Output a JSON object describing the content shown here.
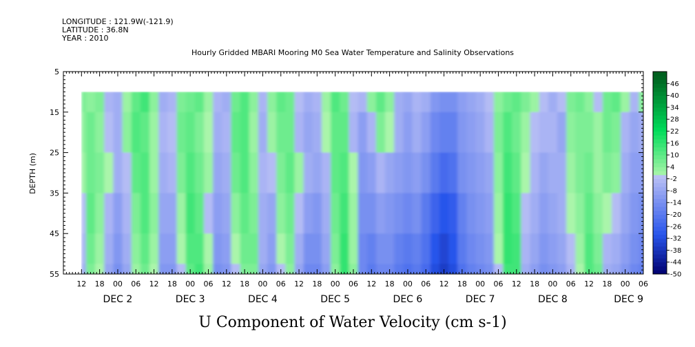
{
  "header": {
    "longitude": "LONGITUDE : 121.9W(-121.9)",
    "latitude": "LATITUDE : 36.8N",
    "year": "YEAR : 2010",
    "title": "Hourly Gridded MBARI Mooring M0 Sea Water Temperature and Salinity Observations"
  },
  "chart_data": {
    "type": "heatmap",
    "title": "Hourly Gridded MBARI Mooring M0 Sea Water Temperature and Salinity Observations",
    "xlabel": "",
    "ylabel": "DEPTH (m)",
    "variable_label": "U Component of Water Velocity (cm s-1)",
    "y_range_m": [
      5,
      55
    ],
    "y_inverted": true,
    "y_ticks": [
      "5",
      "15",
      "25",
      "35",
      "45",
      "55"
    ],
    "data_depth_range_m": [
      10,
      55
    ],
    "x_range_hours_from_dec1_00": [
      6,
      198
    ],
    "x_hour_ticks": [
      "12",
      "18",
      "00",
      "06",
      "12",
      "18",
      "00",
      "06",
      "12",
      "18",
      "00",
      "06",
      "12",
      "18",
      "00",
      "06",
      "12",
      "18",
      "00",
      "06",
      "12",
      "18",
      "00",
      "06",
      "12",
      "18",
      "00",
      "06",
      "12",
      "18",
      "00",
      "06"
    ],
    "x_day_labels": [
      "DEC  2",
      "DEC  3",
      "DEC  4",
      "DEC  5",
      "DEC  6",
      "DEC  7",
      "DEC  8",
      "DEC  9"
    ],
    "colorbar_levels": [
      "46",
      "40",
      "34",
      "28",
      "22",
      "16",
      "10",
      "4",
      "-2",
      "-8",
      "-14",
      "-20",
      "-26",
      "-32",
      "-38",
      "-44",
      "-50"
    ],
    "colorbar_range": [
      -50,
      52
    ],
    "time_hours": [
      12,
      15,
      18,
      21,
      24,
      27,
      30,
      33,
      36,
      39,
      42,
      45,
      48,
      51,
      54,
      57,
      60,
      63,
      66,
      69,
      72,
      75,
      78,
      81,
      84,
      87,
      90,
      93,
      96,
      99,
      102,
      105,
      108,
      111,
      114,
      117,
      120,
      123,
      126,
      129,
      132,
      135,
      138,
      141,
      144,
      147,
      150,
      153,
      156,
      159,
      162,
      165,
      168,
      171,
      174,
      177,
      180,
      183,
      186,
      189,
      192,
      195,
      198
    ],
    "depths_m": [
      10,
      20,
      30,
      40,
      50,
      55
    ],
    "u_cm_s": [
      [
        6,
        4,
        6,
        -4,
        -6,
        2,
        10,
        14,
        4,
        -6,
        -4,
        6,
        8,
        10,
        2,
        -4,
        -6,
        8,
        12,
        4,
        -4,
        4,
        10,
        8,
        -2,
        -6,
        -4,
        2,
        12,
        8,
        -2,
        -4,
        4,
        10,
        4,
        -6,
        -8,
        -4,
        -6,
        -12,
        -14,
        -14,
        -10,
        -8,
        -6,
        -2,
        4,
        8,
        10,
        6,
        2,
        -2,
        -6,
        -2,
        6,
        8,
        4,
        -2,
        8,
        10,
        2,
        -4,
        4
      ],
      [
        4,
        8,
        4,
        -2,
        -6,
        4,
        12,
        10,
        2,
        -4,
        -2,
        8,
        10,
        6,
        0,
        -6,
        -4,
        10,
        12,
        2,
        -6,
        2,
        8,
        8,
        -4,
        -8,
        -6,
        0,
        10,
        10,
        -4,
        -10,
        -4,
        6,
        0,
        -6,
        -10,
        -6,
        -10,
        -16,
        -18,
        -18,
        -12,
        -10,
        -8,
        -4,
        6,
        12,
        8,
        2,
        -2,
        -4,
        -4,
        -8,
        4,
        6,
        6,
        2,
        8,
        6,
        -4,
        -8,
        -6
      ],
      [
        2,
        8,
        6,
        0,
        -6,
        -2,
        10,
        12,
        2,
        -6,
        -4,
        6,
        12,
        8,
        2,
        -8,
        -6,
        8,
        12,
        4,
        -4,
        -2,
        6,
        10,
        2,
        -6,
        -8,
        -4,
        10,
        12,
        0,
        -12,
        -10,
        -4,
        -8,
        -10,
        -12,
        -10,
        -14,
        -20,
        -24,
        -22,
        -14,
        -12,
        -10,
        -8,
        4,
        14,
        10,
        0,
        -4,
        -8,
        -6,
        -6,
        2,
        6,
        8,
        2,
        6,
        4,
        -6,
        -10,
        -10
      ],
      [
        -2,
        10,
        4,
        -4,
        -10,
        -4,
        6,
        12,
        4,
        -8,
        -8,
        2,
        14,
        10,
        -2,
        -10,
        -8,
        4,
        10,
        6,
        -6,
        -8,
        4,
        8,
        -2,
        -10,
        -12,
        -6,
        8,
        14,
        2,
        -14,
        -14,
        -10,
        -12,
        -14,
        -16,
        -14,
        -20,
        -26,
        -30,
        -28,
        -18,
        -14,
        -12,
        -10,
        2,
        16,
        12,
        -2,
        -6,
        -10,
        -8,
        -6,
        0,
        4,
        10,
        4,
        0,
        -2,
        -8,
        -12,
        -14
      ],
      [
        -4,
        8,
        2,
        -6,
        -12,
        -6,
        4,
        10,
        2,
        -10,
        -10,
        0,
        12,
        12,
        0,
        -12,
        -10,
        0,
        8,
        8,
        -6,
        -10,
        0,
        6,
        -6,
        -14,
        -14,
        -8,
        6,
        16,
        2,
        -16,
        -18,
        -14,
        -14,
        -18,
        -20,
        -18,
        -22,
        -30,
        -34,
        -30,
        -20,
        -16,
        -14,
        -12,
        0,
        16,
        14,
        -4,
        -8,
        -12,
        -10,
        -8,
        -2,
        2,
        12,
        6,
        -4,
        -6,
        -10,
        -14,
        -16
      ],
      [
        -6,
        6,
        0,
        -8,
        -14,
        -8,
        2,
        8,
        0,
        -12,
        -12,
        -2,
        10,
        14,
        2,
        -14,
        -12,
        -2,
        6,
        6,
        -8,
        -12,
        -2,
        4,
        -8,
        -16,
        -16,
        -10,
        4,
        16,
        4,
        -16,
        -20,
        -16,
        -16,
        -20,
        -22,
        -20,
        -24,
        -32,
        -36,
        -32,
        -22,
        -18,
        -16,
        -14,
        -2,
        14,
        14,
        -6,
        -10,
        -14,
        -12,
        -10,
        -4,
        0,
        12,
        8,
        -6,
        -8,
        -12,
        -16,
        -18
      ]
    ]
  }
}
